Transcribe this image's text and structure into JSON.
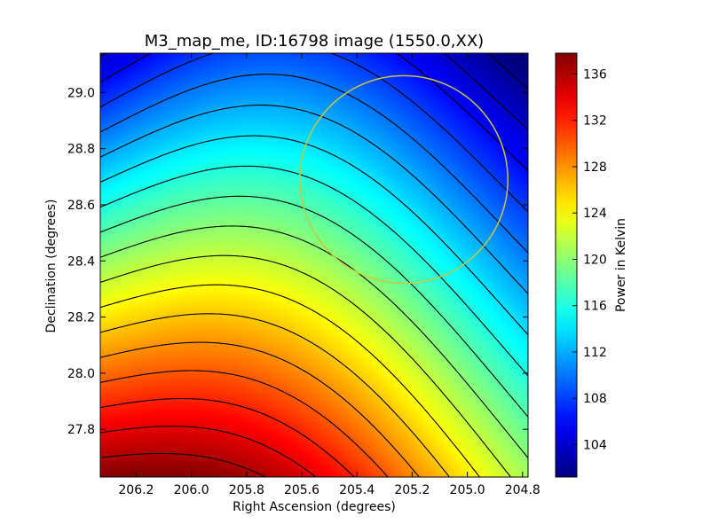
{
  "chart_data": {
    "type": "heatmap",
    "title": "M3_map_me, ID:16798 image (1550.0,XX)",
    "xlabel": "Right Ascension (degrees)",
    "ylabel": "Declination (degrees)",
    "xlim": [
      206.33,
      204.78
    ],
    "ylim": [
      27.63,
      29.14
    ],
    "x_ticks": [
      "206.2",
      "206.0",
      "205.8",
      "205.6",
      "205.4",
      "205.2",
      "205.0",
      "204.8"
    ],
    "x_tick_values": [
      206.2,
      206.0,
      205.8,
      205.6,
      205.4,
      205.2,
      205.0,
      204.8
    ],
    "y_ticks": [
      "27.8",
      "28.0",
      "28.2",
      "28.4",
      "28.6",
      "28.8",
      "29.0"
    ],
    "y_tick_values": [
      27.8,
      28.0,
      28.2,
      28.4,
      28.6,
      28.8,
      29.0
    ],
    "colorbar": {
      "label": "Power in Kelvin",
      "range": [
        101.2,
        137.8
      ],
      "ticks": [
        "104",
        "108",
        "112",
        "116",
        "120",
        "124",
        "128",
        "132",
        "136"
      ],
      "tick_values": [
        104,
        108,
        112,
        116,
        120,
        124,
        128,
        132,
        136
      ],
      "colormap": "jet"
    },
    "field": {
      "description_of_model": "brightness temperature decreasing from lower-left to upper-right",
      "value_at_corners": {
        "lower_left": 137.5,
        "upper_right": 101.5,
        "lower_right": 125.0,
        "upper_left": 107.5
      }
    },
    "contour_levels": [
      102,
      104,
      106,
      108,
      110,
      112,
      114,
      116,
      118,
      120,
      122,
      124,
      126,
      128,
      130,
      132,
      134,
      136
    ],
    "circle": {
      "center_ra": 205.23,
      "center_dec": 28.69,
      "radius_deg": 0.37,
      "color": "#c8c83c"
    },
    "grid": false
  }
}
